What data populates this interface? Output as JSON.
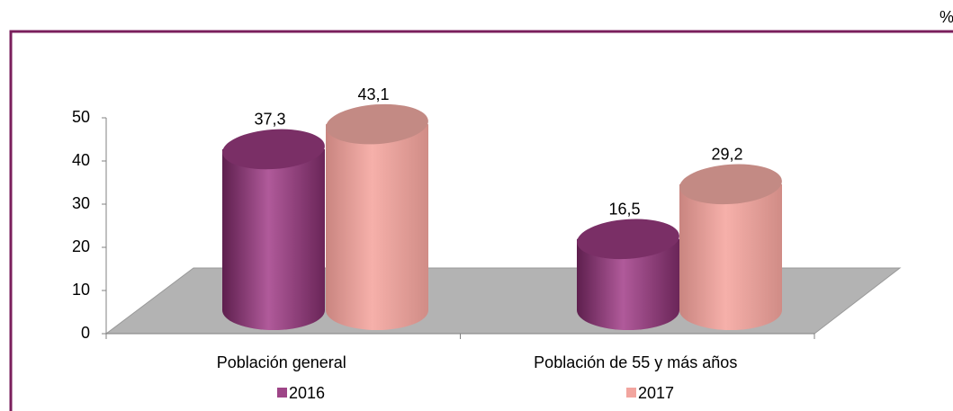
{
  "chart_data": {
    "type": "bar3d-cylinder",
    "unit": "%",
    "categories": [
      "Población general",
      "Población de 55 y  más años"
    ],
    "series": [
      {
        "name": "2016",
        "color": "#9e4587",
        "values": [
          37.3,
          16.5
        ],
        "value_labels": [
          "37,3",
          "16,5"
        ]
      },
      {
        "name": "2017",
        "color": "#f2a59f",
        "values": [
          43.1,
          29.2
        ],
        "value_labels": [
          "43,1",
          "29,2"
        ]
      }
    ],
    "ylim": [
      0,
      50
    ],
    "yticks": [
      0,
      10,
      20,
      30,
      40,
      50
    ],
    "grid": false,
    "legend": "bottom"
  }
}
